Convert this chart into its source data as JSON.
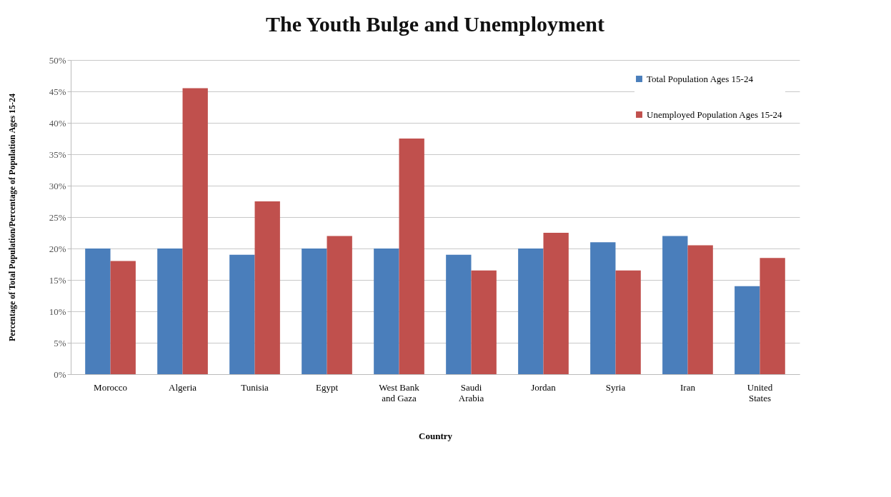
{
  "chart_data": {
    "type": "bar",
    "title": "The Youth Bulge and Unemployment",
    "xlabel": "Country",
    "ylabel": "Percentage of Total Population/Percentage of Population Ages 15-24",
    "categories": [
      "Morocco",
      "Algeria",
      "Tunisia",
      "Egypt",
      "West Bank and Gaza",
      "Saudi Arabia",
      "Jordan",
      "Syria",
      "Iran",
      "United States"
    ],
    "series": [
      {
        "name": "Total Population  Ages 15-24",
        "color": "#4a7ebb",
        "values": [
          20,
          20,
          19,
          20,
          20,
          19,
          20,
          21,
          22,
          14
        ]
      },
      {
        "name": "Unemployed Population  Ages 15-24",
        "color": "#c0504d",
        "values": [
          18,
          45.5,
          27.5,
          22,
          37.5,
          16.5,
          22.5,
          16.5,
          20.5,
          18.5
        ]
      }
    ],
    "ylim": [
      0,
      50
    ],
    "yticks": [
      {
        "value": 0,
        "label": "0%"
      },
      {
        "value": 5,
        "label": "5%"
      },
      {
        "value": 10,
        "label": "10%"
      },
      {
        "value": 15,
        "label": "15%"
      },
      {
        "value": 20,
        "label": "20%"
      },
      {
        "value": 25,
        "label": "25%"
      },
      {
        "value": 30,
        "label": "30%"
      },
      {
        "value": 35,
        "label": "35%"
      },
      {
        "value": 40,
        "label": "40%"
      },
      {
        "value": 45,
        "label": "45%"
      },
      {
        "value": 50,
        "label": "50%"
      }
    ],
    "grid": "y",
    "legend": "top right"
  }
}
